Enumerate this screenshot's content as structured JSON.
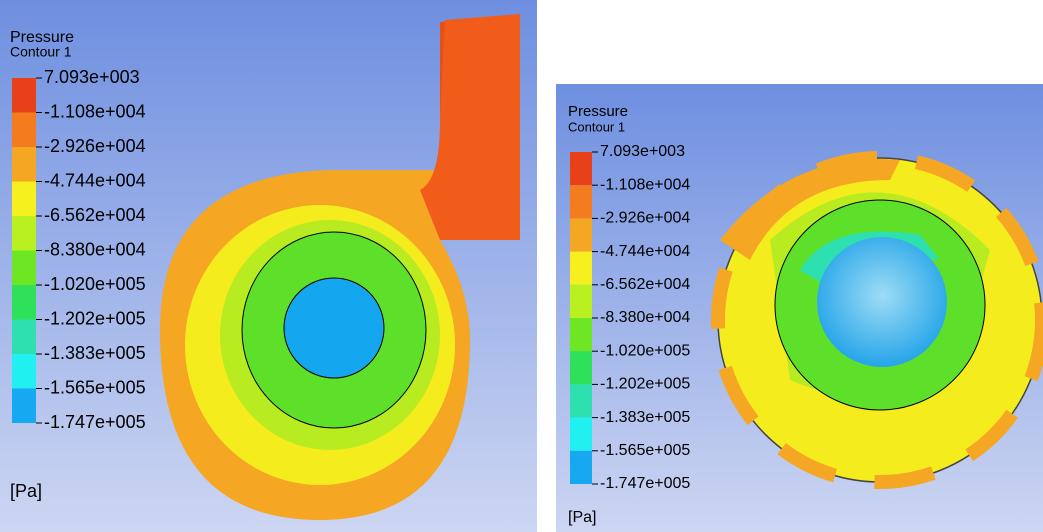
{
  "panels": [
    {
      "title": "Pressure",
      "subtitle": "Contour 1",
      "legend": [
        "7.093e+003",
        "-1.108e+004",
        "-2.926e+004",
        "-4.744e+004",
        "-6.562e+004",
        "-8.380e+004",
        "-1.020e+005",
        "-1.202e+005",
        "-1.383e+005",
        "-1.565e+005",
        "-1.747e+005"
      ],
      "unit": "[Pa]"
    },
    {
      "title": "Pressure",
      "subtitle": "Contour 1",
      "legend": [
        "7.093e+003",
        "-1.108e+004",
        "-2.926e+004",
        "-4.744e+004",
        "-6.562e+004",
        "-8.380e+004",
        "-1.020e+005",
        "-1.202e+005",
        "-1.383e+005",
        "-1.565e+005",
        "-1.747e+005"
      ],
      "unit": "[Pa]"
    }
  ]
}
